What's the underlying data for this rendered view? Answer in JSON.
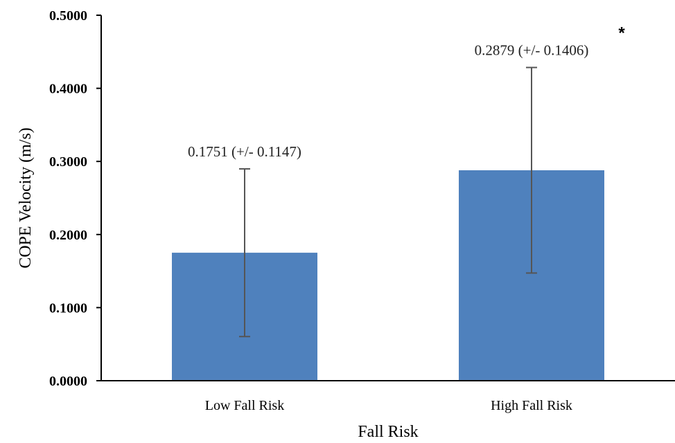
{
  "chart_data": {
    "type": "bar",
    "title": "",
    "xlabel": "Fall Risk",
    "ylabel": "COPE Velocity (m/s)",
    "ylim": [
      0,
      0.5
    ],
    "yticks": [
      "0.0000",
      "0.1000",
      "0.2000",
      "0.3000",
      "0.4000",
      "0.5000"
    ],
    "ytick_values": [
      0,
      0.1,
      0.2,
      0.3,
      0.4,
      0.5
    ],
    "categories": [
      "Low Fall Risk",
      "High Fall Risk"
    ],
    "values": [
      0.1751,
      0.2879
    ],
    "errors": [
      0.1147,
      0.1406
    ],
    "data_labels": [
      "0.1751 (+/- 0.1147)",
      "0.2879 (+/- 0.1406)"
    ],
    "significance": [
      "",
      "*"
    ],
    "grid": false,
    "colors": {
      "bar": "#4f81bd",
      "error_bar": "#555555",
      "axis": "#000000"
    }
  }
}
